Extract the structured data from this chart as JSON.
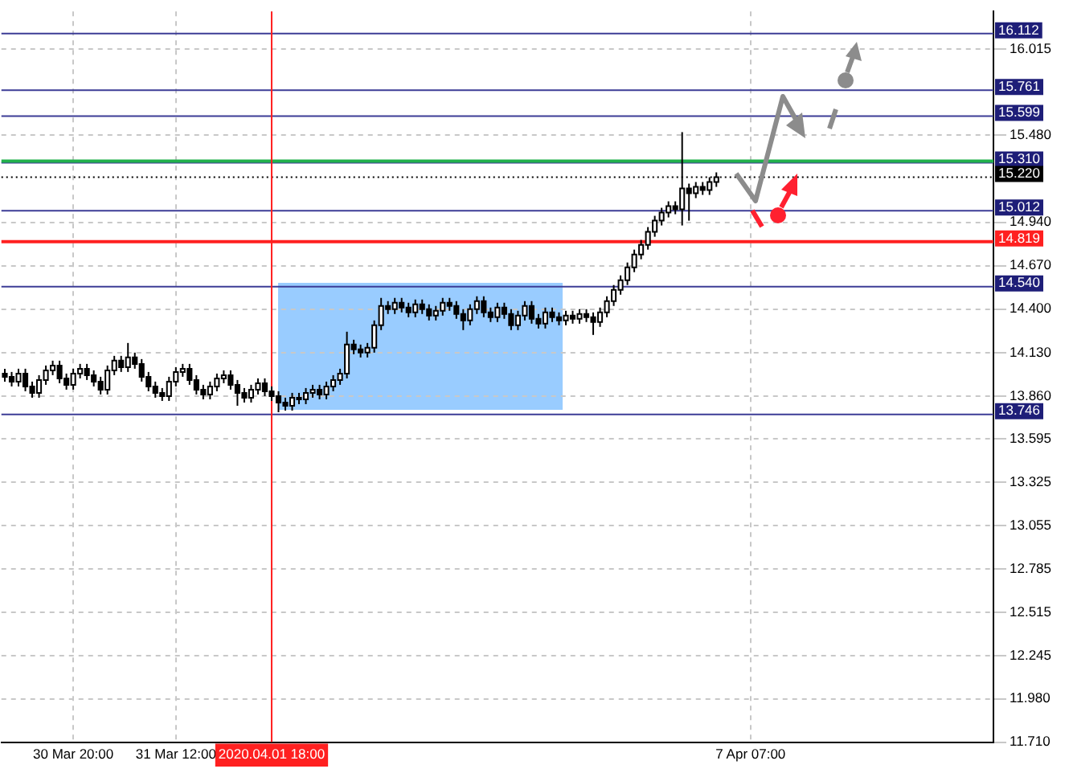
{
  "chart_data": {
    "type": "candlestick",
    "categories": [
      null,
      null,
      null,
      null,
      null,
      null,
      null,
      null,
      null,
      null,
      "30 Mar 20:00",
      null,
      null,
      null,
      null,
      null,
      null,
      null,
      null,
      null,
      null,
      null,
      null,
      null,
      null,
      "31 Mar 12:00",
      null,
      null,
      null,
      null,
      null,
      null,
      null,
      null,
      null,
      null,
      null,
      null,
      null,
      "2020.04.01 18:00",
      null,
      null,
      null,
      null,
      null,
      null,
      null,
      null,
      null,
      null,
      null,
      null,
      null,
      null,
      null,
      null,
      null,
      null,
      null,
      null,
      null,
      null,
      null,
      null,
      null,
      null,
      null,
      null,
      null,
      null,
      null,
      null,
      null,
      null,
      null,
      null,
      null,
      null,
      null,
      null,
      null,
      null,
      null,
      null,
      null,
      null,
      null,
      null,
      null,
      null,
      null,
      null,
      null,
      null,
      null,
      null,
      null,
      null,
      null,
      null,
      null,
      null,
      null,
      null,
      null,
      null,
      null,
      null,
      null,
      "7 Apr 07:00",
      null,
      null,
      null,
      null,
      null,
      null,
      null,
      null,
      null,
      null,
      null,
      null,
      null,
      null,
      null,
      null,
      null,
      null,
      null,
      null,
      null,
      null,
      null,
      null,
      null,
      null,
      null,
      null,
      null,
      null,
      null,
      null,
      null,
      null,
      null
    ],
    "ohlc": [
      [
        14.0,
        14.03,
        13.95,
        13.98
      ],
      [
        13.98,
        14.01,
        13.92,
        13.95
      ],
      [
        13.95,
        14.03,
        13.92,
        14.0
      ],
      [
        14.0,
        14.03,
        13.89,
        13.92
      ],
      [
        13.92,
        13.95,
        13.85,
        13.88
      ],
      [
        13.88,
        13.99,
        13.85,
        13.96
      ],
      [
        13.96,
        14.05,
        13.93,
        14.02
      ],
      [
        14.02,
        14.08,
        13.99,
        14.05
      ],
      [
        14.05,
        14.08,
        13.94,
        13.97
      ],
      [
        13.97,
        14.0,
        13.9,
        13.93
      ],
      [
        13.93,
        14.03,
        13.9,
        14.0
      ],
      [
        14.0,
        14.06,
        13.97,
        14.03
      ],
      [
        14.03,
        14.06,
        13.96,
        13.99
      ],
      [
        13.99,
        14.02,
        13.92,
        13.95
      ],
      [
        13.95,
        13.98,
        13.87,
        13.9
      ],
      [
        13.9,
        14.05,
        13.87,
        14.02
      ],
      [
        14.02,
        14.11,
        13.99,
        14.08
      ],
      [
        14.08,
        14.11,
        14.01,
        14.04
      ],
      [
        14.04,
        14.19,
        14.01,
        14.1
      ],
      [
        14.1,
        14.13,
        14.03,
        14.06
      ],
      [
        14.06,
        14.09,
        13.95,
        13.98
      ],
      [
        13.98,
        14.01,
        13.89,
        13.92
      ],
      [
        13.92,
        13.95,
        13.85,
        13.88
      ],
      [
        13.88,
        13.91,
        13.83,
        13.86
      ],
      [
        13.86,
        13.98,
        13.83,
        13.95
      ],
      [
        13.95,
        14.04,
        13.92,
        14.01
      ],
      [
        14.01,
        14.06,
        13.98,
        14.03
      ],
      [
        14.03,
        14.06,
        13.93,
        13.96
      ],
      [
        13.96,
        13.99,
        13.87,
        13.9
      ],
      [
        13.9,
        13.93,
        13.84,
        13.87
      ],
      [
        13.87,
        13.95,
        13.84,
        13.92
      ],
      [
        13.92,
        14.0,
        13.89,
        13.97
      ],
      [
        13.97,
        14.02,
        13.94,
        13.99
      ],
      [
        13.99,
        14.02,
        13.9,
        13.93
      ],
      [
        13.93,
        13.96,
        13.8,
        13.88
      ],
      [
        13.88,
        13.91,
        13.82,
        13.85
      ],
      [
        13.85,
        13.93,
        13.82,
        13.9
      ],
      [
        13.9,
        13.97,
        13.87,
        13.94
      ],
      [
        13.94,
        13.97,
        13.86,
        13.89
      ],
      [
        13.89,
        13.92,
        13.83,
        13.86
      ],
      [
        13.86,
        13.89,
        13.76,
        13.82
      ],
      [
        13.82,
        13.85,
        13.77,
        13.8
      ],
      [
        13.8,
        13.88,
        13.77,
        13.85
      ],
      [
        13.85,
        13.88,
        13.81,
        13.84
      ],
      [
        13.84,
        13.91,
        13.81,
        13.88
      ],
      [
        13.88,
        13.93,
        13.85,
        13.9
      ],
      [
        13.9,
        13.93,
        13.84,
        13.87
      ],
      [
        13.87,
        13.95,
        13.84,
        13.92
      ],
      [
        13.92,
        13.99,
        13.89,
        13.96
      ],
      [
        13.96,
        14.03,
        13.93,
        14.0
      ],
      [
        14.0,
        14.26,
        13.97,
        14.18
      ],
      [
        14.18,
        14.21,
        14.12,
        14.15
      ],
      [
        14.15,
        14.18,
        14.1,
        14.13
      ],
      [
        14.13,
        14.19,
        14.1,
        14.16
      ],
      [
        14.16,
        14.33,
        14.13,
        14.3
      ],
      [
        14.3,
        14.47,
        14.27,
        14.42
      ],
      [
        14.42,
        14.45,
        14.37,
        14.4
      ],
      [
        14.4,
        14.47,
        14.37,
        14.44
      ],
      [
        14.44,
        14.47,
        14.38,
        14.41
      ],
      [
        14.41,
        14.44,
        14.35,
        14.38
      ],
      [
        14.38,
        14.46,
        14.35,
        14.43
      ],
      [
        14.43,
        14.46,
        14.37,
        14.4
      ],
      [
        14.4,
        14.43,
        14.33,
        14.36
      ],
      [
        14.36,
        14.42,
        14.33,
        14.39
      ],
      [
        14.39,
        14.47,
        14.36,
        14.44
      ],
      [
        14.44,
        14.47,
        14.39,
        14.42
      ],
      [
        14.42,
        14.45,
        14.34,
        14.37
      ],
      [
        14.37,
        14.4,
        14.27,
        14.33
      ],
      [
        14.33,
        14.43,
        14.3,
        14.4
      ],
      [
        14.4,
        14.48,
        14.37,
        14.45
      ],
      [
        14.45,
        14.48,
        14.35,
        14.38
      ],
      [
        14.38,
        14.41,
        14.32,
        14.35
      ],
      [
        14.35,
        14.44,
        14.32,
        14.41
      ],
      [
        14.41,
        14.44,
        14.34,
        14.37
      ],
      [
        14.37,
        14.4,
        14.27,
        14.3
      ],
      [
        14.3,
        14.39,
        14.27,
        14.36
      ],
      [
        14.36,
        14.45,
        14.33,
        14.42
      ],
      [
        14.42,
        14.45,
        14.31,
        14.34
      ],
      [
        14.34,
        14.37,
        14.28,
        14.31
      ],
      [
        14.31,
        14.41,
        14.28,
        14.38
      ],
      [
        14.38,
        14.41,
        14.32,
        14.35
      ],
      [
        14.35,
        14.38,
        14.3,
        14.33
      ],
      [
        14.33,
        14.39,
        14.3,
        14.36
      ],
      [
        14.36,
        14.39,
        14.31,
        14.34
      ],
      [
        14.34,
        14.4,
        14.31,
        14.37
      ],
      [
        14.37,
        14.4,
        14.32,
        14.35
      ],
      [
        14.35,
        14.38,
        14.24,
        14.32
      ],
      [
        14.32,
        14.41,
        14.29,
        14.38
      ],
      [
        14.38,
        14.48,
        14.35,
        14.45
      ],
      [
        14.45,
        14.55,
        14.42,
        14.52
      ],
      [
        14.52,
        14.61,
        14.49,
        14.58
      ],
      [
        14.58,
        14.69,
        14.55,
        14.66
      ],
      [
        14.66,
        14.77,
        14.63,
        14.74
      ],
      [
        14.74,
        14.83,
        14.71,
        14.8
      ],
      [
        14.8,
        14.91,
        14.77,
        14.88
      ],
      [
        14.88,
        14.98,
        14.85,
        14.95
      ],
      [
        14.95,
        15.03,
        14.92,
        15.0
      ],
      [
        15.0,
        15.07,
        14.97,
        15.04
      ],
      [
        15.04,
        15.07,
        14.99,
        15.02
      ],
      [
        15.02,
        15.5,
        14.92,
        15.15
      ],
      [
        15.15,
        15.18,
        14.95,
        15.12
      ],
      [
        15.12,
        15.19,
        15.09,
        15.16
      ],
      [
        15.16,
        15.19,
        15.11,
        15.14
      ],
      [
        15.14,
        15.22,
        15.11,
        15.19
      ],
      [
        15.19,
        15.25,
        15.16,
        15.22
      ],
      null,
      null,
      null,
      null,
      null,
      null,
      null,
      null,
      null,
      null,
      null,
      null,
      null,
      null,
      null,
      null,
      null,
      null,
      null,
      null,
      null,
      null,
      null,
      null,
      null,
      null,
      null,
      null,
      null,
      null,
      null,
      null,
      null,
      null,
      null,
      null,
      null,
      null,
      null,
      null
    ],
    "ylim": [
      11.71,
      16.25
    ],
    "yticks": [
      {
        "value": 11.71,
        "label": "11.710"
      },
      {
        "value": 11.98,
        "label": "11.980"
      },
      {
        "value": 12.245,
        "label": "12.245"
      },
      {
        "value": 12.515,
        "label": "12.515"
      },
      {
        "value": 12.785,
        "label": "12.785"
      },
      {
        "value": 13.055,
        "label": "13.055"
      },
      {
        "value": 13.325,
        "label": "13.325"
      },
      {
        "value": 13.595,
        "label": "13.595"
      },
      {
        "value": 13.86,
        "label": "13.860"
      },
      {
        "value": 14.13,
        "label": "14.130"
      },
      {
        "value": 14.4,
        "label": "14.400"
      },
      {
        "value": 14.67,
        "label": "14.670"
      },
      {
        "value": 14.94,
        "label": "14.940"
      },
      {
        "value": 15.48,
        "label": "15.480"
      },
      {
        "value": 16.015,
        "label": "16.015"
      }
    ],
    "ref_lines": [
      {
        "axis": "y",
        "value": 16.112,
        "label": "16.112",
        "color": "#3c3c96"
      },
      {
        "axis": "y",
        "value": 15.761,
        "label": "15.761",
        "color": "#3c3c96"
      },
      {
        "axis": "y",
        "value": 15.599,
        "label": "15.599",
        "color": "#3c3c96"
      },
      {
        "axis": "y",
        "value": 15.31,
        "label": "15.310",
        "color": "#3c3c96"
      },
      {
        "axis": "y",
        "value": 15.22,
        "label": "15.220",
        "color": "#000000",
        "line_style": "dotted"
      },
      {
        "axis": "y",
        "value": 15.012,
        "label": "15.012",
        "color": "#3c3c96"
      },
      {
        "axis": "y",
        "value": 14.819,
        "label": "14.819",
        "color": "#ff2020"
      },
      {
        "axis": "y",
        "value": 14.54,
        "label": "14.540",
        "color": "#3c3c96"
      },
      {
        "axis": "y",
        "value": 13.746,
        "label": "13.746",
        "color": "#3c3c96"
      },
      {
        "axis": "y",
        "value": 15.32,
        "color": "#22b14c"
      },
      {
        "axis": "x",
        "value": "2020.04.01 18:00",
        "color": "#ff2020"
      }
    ],
    "grid": true
  }
}
